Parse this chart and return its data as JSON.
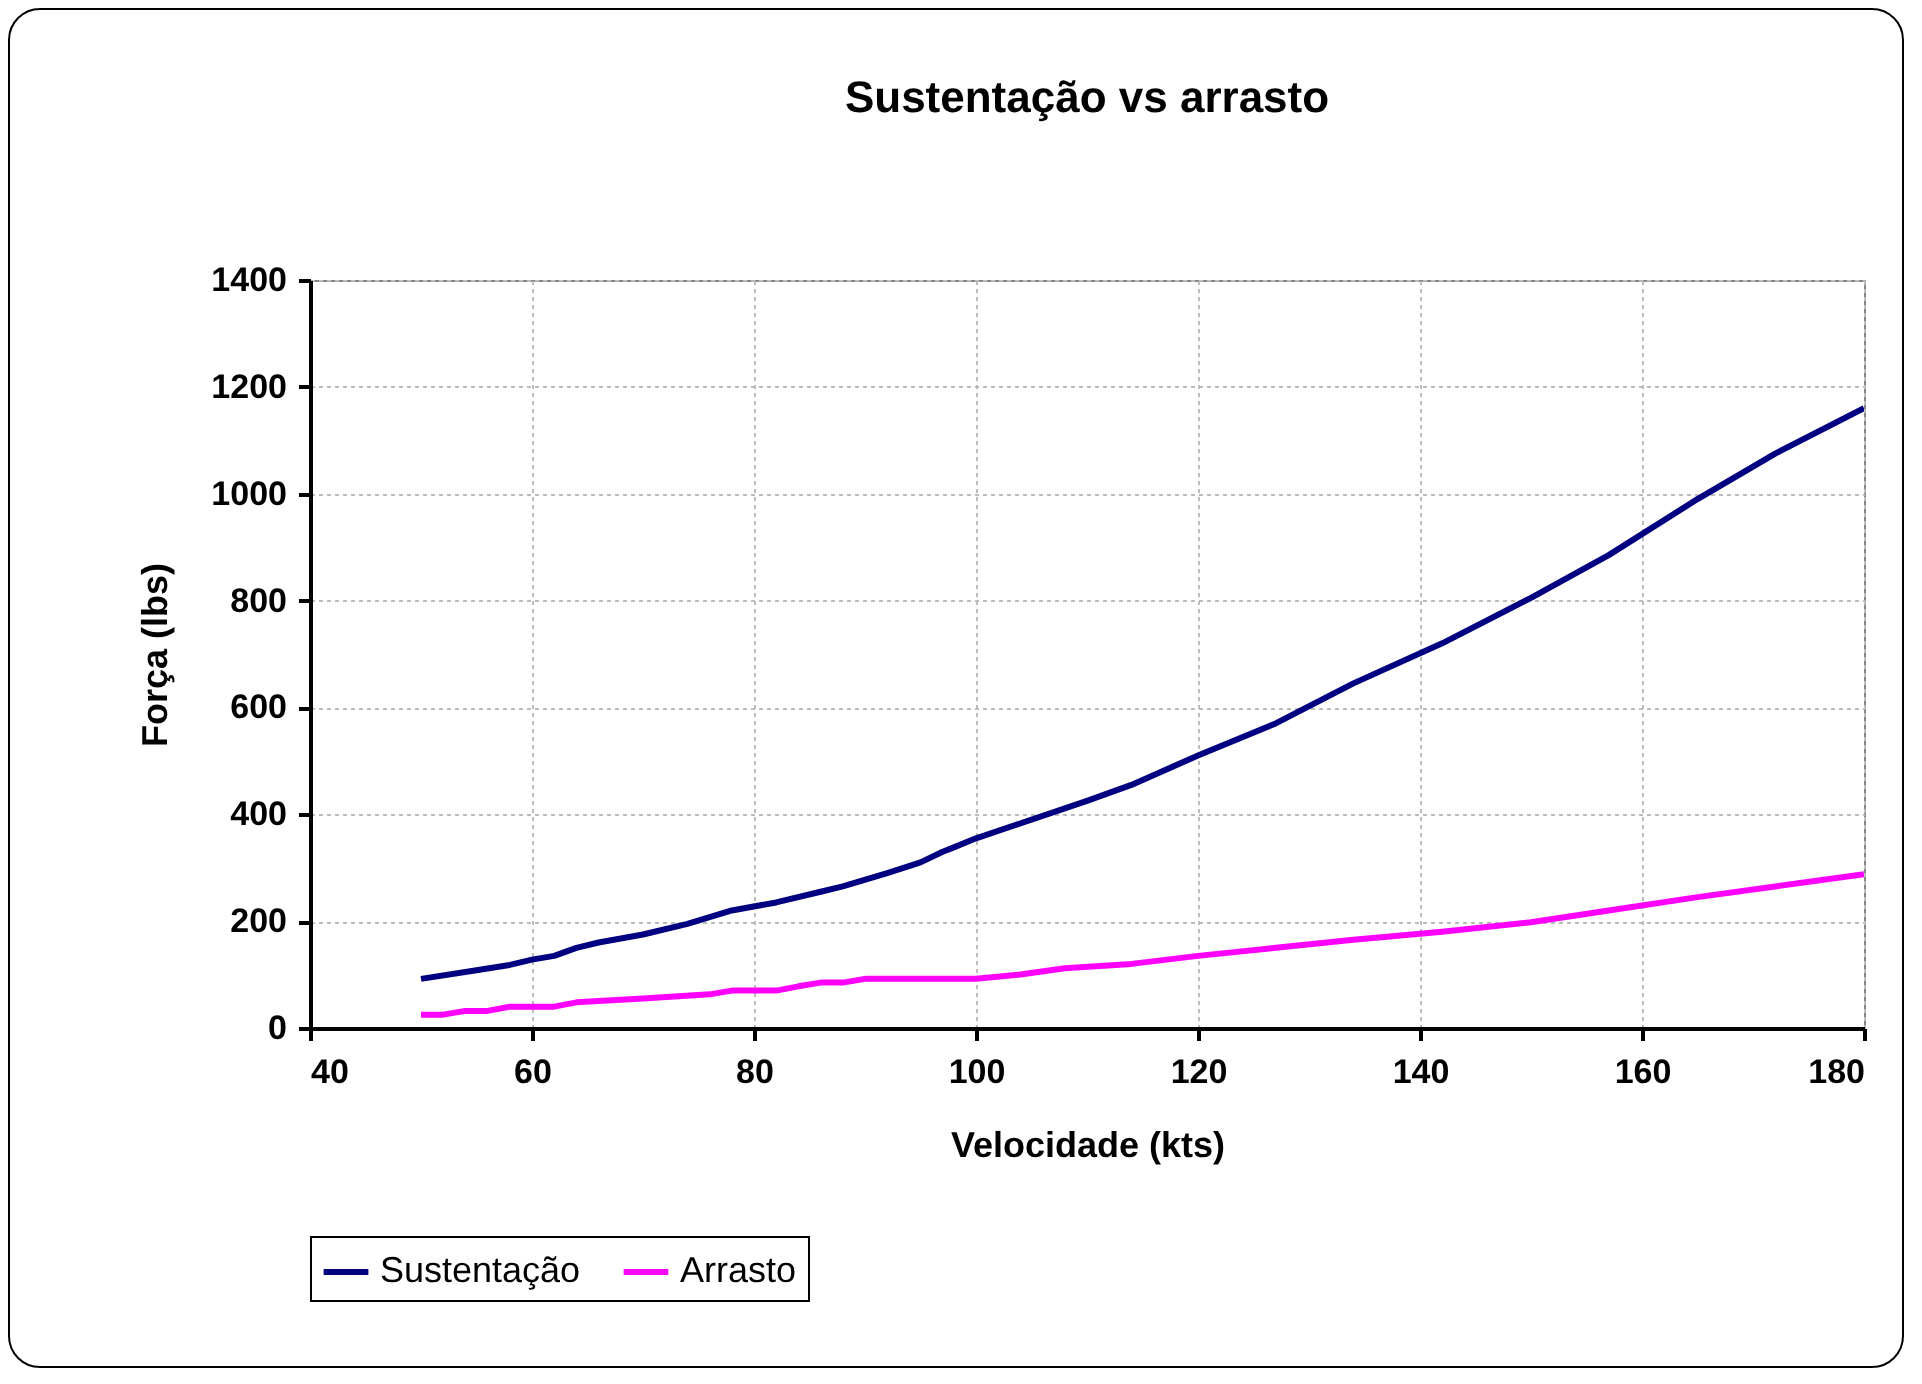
{
  "chart_data": {
    "type": "line",
    "title": "Sustentação vs arrasto",
    "xlabel": "Velocidade (kts)",
    "ylabel": "Força (lbs)",
    "xlim": [
      40,
      180
    ],
    "xticks": [
      40,
      60,
      80,
      100,
      120,
      140,
      160,
      180
    ],
    "ylim": [
      0,
      1400
    ],
    "yticks": [
      0,
      200,
      400,
      600,
      800,
      1000,
      1200,
      1400
    ],
    "grid": true,
    "legend": "bottom",
    "marker": "none",
    "line_style": "solid",
    "series": [
      {
        "name": "Sustentação",
        "color": "#000080",
        "x": [
          50,
          55,
          58,
          60,
          62,
          64,
          66,
          70,
          74,
          78,
          82,
          86,
          88,
          92,
          95,
          97,
          98,
          100,
          110,
          114,
          120,
          127,
          134,
          142,
          150,
          157,
          165,
          172,
          180
        ],
        "values": [
          92,
          108,
          118,
          128,
          135,
          150,
          160,
          175,
          195,
          220,
          235,
          255,
          265,
          290,
          310,
          330,
          338,
          355,
          425,
          455,
          510,
          570,
          645,
          720,
          805,
          885,
          990,
          1075,
          1160
        ]
      },
      {
        "name": "Arrasto",
        "color": "#ff00ff",
        "x": [
          50,
          52,
          54,
          56,
          58,
          62,
          64,
          70,
          76,
          78,
          82,
          84,
          86,
          88,
          90,
          100,
          104,
          108,
          114,
          120,
          127,
          134,
          142,
          150,
          157,
          165,
          172,
          180
        ],
        "values": [
          25,
          25,
          32,
          32,
          40,
          40,
          48,
          55,
          63,
          70,
          70,
          78,
          85,
          85,
          92,
          92,
          100,
          112,
          120,
          135,
          150,
          165,
          180,
          198,
          220,
          245,
          265,
          288
        ]
      }
    ]
  }
}
